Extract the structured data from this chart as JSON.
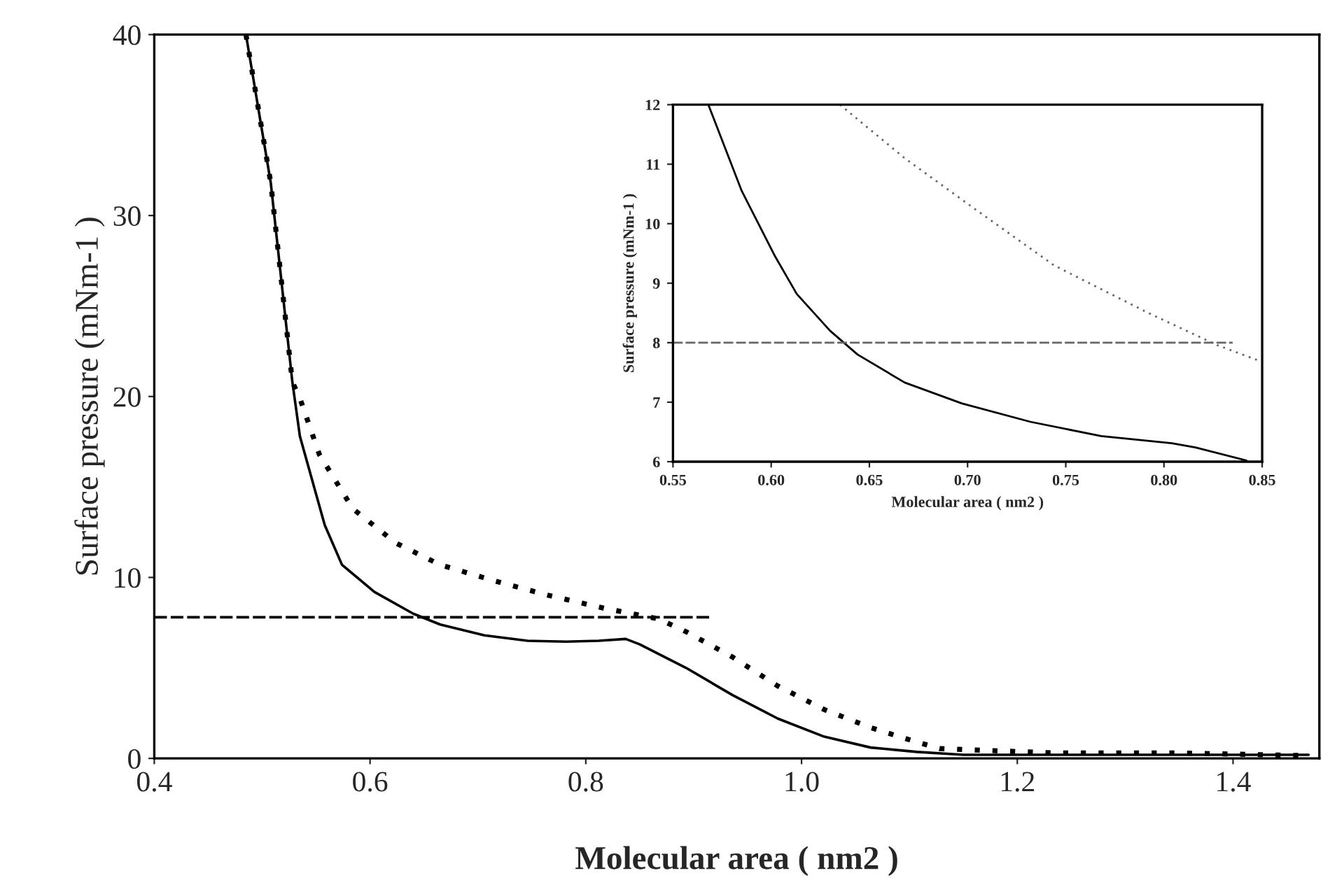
{
  "chart_data": [
    {
      "type": "line",
      "xlabel": "Molecular area ( nm2 )",
      "ylabel": "Surface pressure (mNm-1 )",
      "xlim": [
        0.4,
        1.48
      ],
      "ylim": [
        0,
        40
      ],
      "xticks": [
        0.4,
        0.6,
        0.8,
        {
          "value": 1.0,
          "label": "1.0"
        },
        1.2,
        1.4
      ],
      "yticks": [
        0,
        10,
        20,
        30,
        40
      ],
      "grid": false,
      "legend": false,
      "series": [
        {
          "color": "#000000",
          "line_style": "solid",
          "x": [
            0.485,
            0.508,
            0.528,
            0.535,
            0.558,
            0.574,
            0.604,
            0.64,
            0.665,
            0.706,
            0.746,
            0.782,
            0.812,
            0.837,
            0.85,
            0.893,
            0.936,
            0.978,
            1.021,
            1.064,
            1.107,
            1.15,
            1.25,
            1.35,
            1.47
          ],
          "values": [
            40,
            31.8,
            20.8,
            17.8,
            12.9,
            10.7,
            9.2,
            8.0,
            7.4,
            6.8,
            6.5,
            6.45,
            6.5,
            6.6,
            6.3,
            5.0,
            3.5,
            2.2,
            1.2,
            0.6,
            0.36,
            0.2,
            0.2,
            0.2,
            0.2
          ]
        },
        {
          "color": "#000000",
          "line_style": "dotted",
          "x": [
            0.485,
            0.508,
            0.528,
            0.535,
            0.553,
            0.584,
            0.624,
            0.665,
            0.716,
            0.766,
            0.817,
            0.868,
            0.893,
            0.936,
            0.978,
            1.021,
            1.064,
            1.107,
            1.128,
            1.235,
            1.35,
            1.47
          ],
          "values": [
            40,
            31.8,
            20.8,
            19.9,
            16.8,
            13.8,
            11.9,
            10.7,
            9.8,
            9.0,
            8.3,
            7.7,
            7.0,
            5.6,
            4.0,
            2.7,
            1.7,
            0.9,
            0.54,
            0.3,
            0.3,
            0.15
          ]
        },
        {
          "color": "#000000",
          "line_style": "dashed",
          "x": [
            0.4,
            0.915
          ],
          "values": [
            7.8,
            7.8
          ]
        }
      ]
    },
    {
      "type": "line",
      "xlabel": "Molecular area ( nm2 )",
      "ylabel": "Surface pressure (mNm-1 )",
      "xlim": [
        0.55,
        0.85
      ],
      "ylim": [
        6,
        12
      ],
      "xticks": [
        0.55,
        {
          "value": 0.6,
          "label": "0.60"
        },
        0.65,
        {
          "value": 0.7,
          "label": "0.70"
        },
        0.75,
        {
          "value": 0.8,
          "label": "0.80"
        },
        0.85
      ],
      "yticks": [
        6,
        7,
        8,
        9,
        10,
        11,
        12
      ],
      "grid": false,
      "legend": false,
      "series": [
        {
          "color": "#000000",
          "line_style": "solid",
          "x": [
            0.568,
            0.585,
            0.602,
            0.613,
            0.63,
            0.644,
            0.668,
            0.697,
            0.732,
            0.768,
            0.804,
            0.816,
            0.842
          ],
          "values": [
            12,
            10.55,
            9.45,
            8.82,
            8.2,
            7.8,
            7.33,
            6.98,
            6.67,
            6.43,
            6.31,
            6.24,
            6.02
          ]
        },
        {
          "color": "#666666",
          "line_style": "dotted",
          "x": [
            0.635,
            0.668,
            0.704,
            0.744,
            0.792,
            0.827,
            0.849
          ],
          "values": [
            12,
            11.1,
            10.24,
            9.3,
            8.5,
            7.96,
            7.69
          ]
        },
        {
          "color": "#666666",
          "line_style": "dashed",
          "x": [
            0.55,
            0.835
          ],
          "values": [
            8,
            8
          ]
        }
      ]
    }
  ]
}
